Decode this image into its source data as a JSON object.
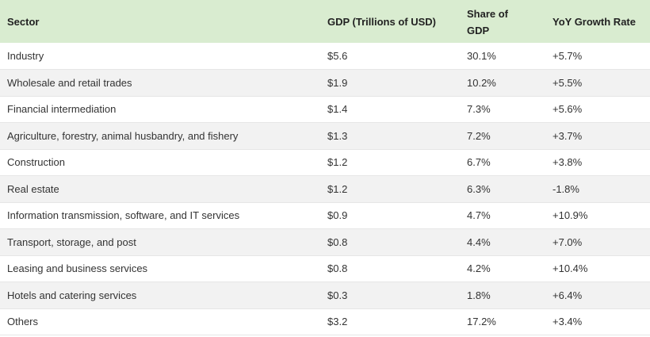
{
  "table": {
    "headers": {
      "sector": "Sector",
      "gdp": "GDP (Trillions of USD)",
      "share_line1": "Share of",
      "share_line2": "GDP",
      "growth": "YoY Growth Rate"
    },
    "rows": [
      {
        "sector": "Industry",
        "gdp": "$5.6",
        "share": "30.1%",
        "growth": "+5.7%"
      },
      {
        "sector": "Wholesale and retail trades",
        "gdp": "$1.9",
        "share": "10.2%",
        "growth": "+5.5%"
      },
      {
        "sector": "Financial intermediation",
        "gdp": "$1.4",
        "share": "7.3%",
        "growth": "+5.6%"
      },
      {
        "sector": "Agriculture, forestry, animal husbandry, and fishery",
        "gdp": "$1.3",
        "share": "7.2%",
        "growth": "+3.7%"
      },
      {
        "sector": "Construction",
        "gdp": "$1.2",
        "share": "6.7%",
        "growth": "+3.8%"
      },
      {
        "sector": "Real estate",
        "gdp": "$1.2",
        "share": "6.3%",
        "growth": "-1.8%"
      },
      {
        "sector": "Information transmission, software, and IT services",
        "gdp": "$0.9",
        "share": "4.7%",
        "growth": "+10.9%"
      },
      {
        "sector": "Transport, storage, and post",
        "gdp": "$0.8",
        "share": "4.4%",
        "growth": "+7.0%"
      },
      {
        "sector": "Leasing and business services",
        "gdp": "$0.8",
        "share": "4.2%",
        "growth": "+10.4%"
      },
      {
        "sector": "Hotels and catering services",
        "gdp": "$0.3",
        "share": "1.8%",
        "growth": "+6.4%"
      },
      {
        "sector": "Others",
        "gdp": "$3.2",
        "share": "17.2%",
        "growth": "+3.4%"
      }
    ]
  },
  "colors": {
    "header_bg": "#d9ecd0",
    "stripe_bg": "#f2f2f2"
  }
}
